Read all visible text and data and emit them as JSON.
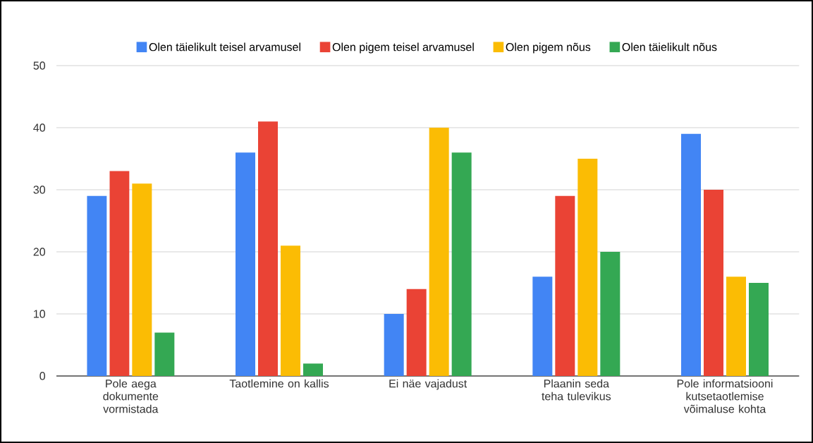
{
  "chart_data": {
    "type": "bar",
    "categories": [
      "Pole aega dokumente vormistada",
      "Taotlemine on kallis",
      "Ei näe vajadust",
      "Plaanin seda teha tulevikus",
      "Pole informatsiooni kutsetaotlemise võimaluse kohta"
    ],
    "series": [
      {
        "name": "Olen täielikult teisel arvamusel",
        "color": "#4285f4",
        "values": [
          29,
          36,
          10,
          16,
          39
        ]
      },
      {
        "name": "Olen pigem teisel arvamusel",
        "color": "#ea4335",
        "values": [
          33,
          41,
          14,
          29,
          30
        ]
      },
      {
        "name": "Olen pigem nõus",
        "color": "#fbbc04",
        "values": [
          31,
          21,
          40,
          35,
          16
        ]
      },
      {
        "name": "Olen täielikult nõus",
        "color": "#34a853",
        "values": [
          7,
          2,
          36,
          20,
          15
        ]
      }
    ],
    "ylim": [
      0,
      50
    ],
    "yticks": [
      0,
      10,
      20,
      30,
      40,
      50
    ],
    "grid": "y",
    "legend": "top"
  }
}
